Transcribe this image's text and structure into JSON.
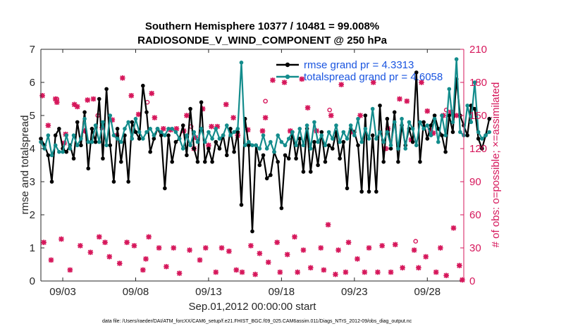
{
  "chart_data": {
    "type": "line",
    "title_line1": "Southern Hemisphere 10377 / 10481 = 99.008%",
    "title_line2": "RADIOSONDE_V_WIND_COMPONENT @ 250 hPa",
    "xlabel": "Sep.01,2012 00:00:00 start",
    "ylabel_left": "rmse and totalspread",
    "ylabel_right": "# of obs: o=possible; ×=assimilated",
    "footnote": "data file: /Users/raeder/DAI/ATM_forcXX/CAM6_setup/f.e21.FHIST_BGC.f09_025.CAM6assim.011/Diags_NTrS_2012-09/obs_diag_output.nc",
    "xlim": [
      1.5,
      30.5
    ],
    "ylim_left": [
      0,
      7
    ],
    "ylim_right": [
      0,
      210
    ],
    "x_ticks": [
      3,
      8,
      13,
      18,
      23,
      28
    ],
    "x_tick_labels": [
      "09/03",
      "09/08",
      "09/13",
      "09/18",
      "09/23",
      "09/28"
    ],
    "y_left_ticks": [
      "0",
      "1",
      "2",
      "3",
      "4",
      "5",
      "6",
      "7"
    ],
    "y_right_ticks": [
      "0",
      "30",
      "60",
      "90",
      "120",
      "150",
      "180",
      "210"
    ],
    "colors": {
      "rmse": "#000000",
      "spread": "#138c8c",
      "obs": "#d6175b",
      "legend_text": "#1a55e0"
    },
    "x_start": 1.5,
    "x_step": 0.25,
    "series": [
      {
        "name": "rmse grand pr = 4.3313",
        "values": [
          4.3,
          4.1,
          3.8,
          3.0,
          4.4,
          4.6,
          4.0,
          3.9,
          4.1,
          3.7,
          4.8,
          4.1,
          5.1,
          3.4,
          4.6,
          4.2,
          5.5,
          3.7,
          5.8,
          4.1,
          3.0,
          4.6,
          3.6,
          4.4,
          3.0,
          4.8,
          4.5,
          4.3,
          5.9,
          5.1,
          3.9,
          4.3,
          4.6,
          4.4,
          2.8,
          4.4,
          3.6,
          4.2,
          4.3,
          4.7,
          3.8,
          5.2,
          4.0,
          3.6,
          5.4,
          3.6,
          4.0,
          3.6,
          4.2,
          4.0,
          4.4,
          3.8,
          4.6,
          3.9,
          4.5,
          2.3,
          4.9,
          4.1,
          1.5,
          4.1,
          3.5,
          3.8,
          3.1,
          3.2,
          3.9,
          3.6,
          2.2,
          3.8,
          3.7,
          4.5,
          3.7,
          4.3,
          3.3,
          4.6,
          3.3,
          4.2,
          3.5,
          4.5,
          3.6,
          4.1,
          4.0,
          4.5,
          3.7,
          4.2,
          2.8,
          4.6,
          4.5,
          4.1,
          2.7,
          5.0,
          2.7,
          4.4,
          2.7,
          5.3,
          3.6,
          4.9,
          4.0,
          5.1,
          3.6,
          4.7,
          4.1,
          4.6,
          4.2,
          6.3,
          3.6,
          4.8,
          4.3,
          4.7,
          5.0,
          4.6,
          4.4,
          3.9,
          5.0,
          4.5,
          6.1,
          5.0,
          4.7,
          4.4,
          5.3,
          5.2,
          4.3,
          4.0,
          4.4,
          4.9
        ]
      },
      {
        "name": "totalspread grand pr = 4.6058",
        "values": [
          4.2,
          4.0,
          4.4,
          3.8,
          4.1,
          3.9,
          3.9,
          4.4,
          4.0,
          4.4,
          4.1,
          4.3,
          4.9,
          4.2,
          4.2,
          4.7,
          4.2,
          4.8,
          4.1,
          5.0,
          4.4,
          4.3,
          4.2,
          4.6,
          4.8,
          4.3,
          4.9,
          4.5,
          4.3,
          4.5,
          4.6,
          4.4,
          4.6,
          4.5,
          4.4,
          4.6,
          4.6,
          4.5,
          4.3,
          4.0,
          4.4,
          4.1,
          4.5,
          4.2,
          4.6,
          4.2,
          4.5,
          4.3,
          4.6,
          4.3,
          4.4,
          4.7,
          4.4,
          4.5,
          4.6,
          6.6,
          4.1,
          4.2,
          4.1,
          4.1,
          4.0,
          4.4,
          4.0,
          4.2,
          3.9,
          4.4,
          4.2,
          4.1,
          4.3,
          4.5,
          4.1,
          4.6,
          4.1,
          4.7,
          4.0,
          4.8,
          4.2,
          4.4,
          4.1,
          4.5,
          4.3,
          4.7,
          4.2,
          4.5,
          4.3,
          4.7,
          4.4,
          4.9,
          4.2,
          4.6,
          4.3,
          5.2,
          4.3,
          4.5,
          4.2,
          4.5,
          4.1,
          4.8,
          4.0,
          4.9,
          4.0,
          4.8,
          4.6,
          4.1,
          4.8,
          4.6,
          4.7,
          4.4,
          4.9,
          4.2,
          5.0,
          4.4,
          5.8,
          4.8,
          6.7,
          4.5,
          4.4,
          5.3,
          4.8,
          6.0,
          4.5,
          4.3,
          4.4,
          4.5
        ]
      }
    ],
    "obs_points": [
      [
        1.6,
        168
      ],
      [
        1.7,
        35
      ],
      [
        2.0,
        141
      ],
      [
        2.2,
        19
      ],
      [
        2.5,
        165
      ],
      [
        2.6,
        162
      ],
      [
        2.9,
        38
      ],
      [
        3.1,
        125
      ],
      [
        3.2,
        133
      ],
      [
        3.5,
        10
      ],
      [
        3.8,
        160
      ],
      [
        4.0,
        158
      ],
      [
        4.2,
        32
      ],
      [
        4.5,
        136
      ],
      [
        4.7,
        164
      ],
      [
        4.9,
        26
      ],
      [
        5.1,
        165
      ],
      [
        5.5,
        40
      ],
      [
        5.7,
        139
      ],
      [
        5.9,
        35
      ],
      [
        6.2,
        22
      ],
      [
        6.4,
        146
      ],
      [
        6.7,
        132
      ],
      [
        6.9,
        16
      ],
      [
        7.1,
        184
      ],
      [
        7.4,
        35
      ],
      [
        7.7,
        168
      ],
      [
        7.9,
        32
      ],
      [
        8.2,
        151
      ],
      [
        8.5,
        10
      ],
      [
        8.7,
        20
      ],
      [
        8.9,
        40
      ],
      [
        9.1,
        170
      ],
      [
        9.3,
        148
      ],
      [
        9.6,
        30
      ],
      [
        9.9,
        138
      ],
      [
        10.1,
        13
      ],
      [
        10.4,
        137
      ],
      [
        10.6,
        30
      ],
      [
        10.8,
        138
      ],
      [
        11.0,
        7
      ],
      [
        11.3,
        136
      ],
      [
        11.5,
        150
      ],
      [
        11.7,
        28
      ],
      [
        12.0,
        120
      ],
      [
        12.1,
        130
      ],
      [
        12.4,
        19
      ],
      [
        12.6,
        156
      ],
      [
        12.8,
        30
      ],
      [
        13.0,
        123
      ],
      [
        13.2,
        140
      ],
      [
        13.5,
        8
      ],
      [
        13.6,
        140
      ],
      [
        13.9,
        30
      ],
      [
        14.2,
        160
      ],
      [
        14.4,
        27
      ],
      [
        14.7,
        148
      ],
      [
        14.9,
        10
      ],
      [
        15.0,
        132
      ],
      [
        15.3,
        8
      ],
      [
        15.7,
        137
      ],
      [
        15.9,
        32
      ],
      [
        16.2,
        6
      ],
      [
        16.5,
        25
      ],
      [
        16.7,
        136
      ],
      [
        16.9,
        148
      ],
      [
        17.1,
        17
      ],
      [
        17.4,
        182
      ],
      [
        17.7,
        35
      ],
      [
        17.9,
        8
      ],
      [
        18.2,
        180
      ],
      [
        18.4,
        24
      ],
      [
        18.6,
        136
      ],
      [
        18.9,
        40
      ],
      [
        19.1,
        8
      ],
      [
        19.4,
        183
      ],
      [
        19.5,
        28
      ],
      [
        19.8,
        157
      ],
      [
        20.0,
        12
      ],
      [
        20.4,
        136
      ],
      [
        20.7,
        30
      ],
      [
        20.9,
        10
      ],
      [
        21.2,
        51
      ],
      [
        21.4,
        150
      ],
      [
        21.7,
        6
      ],
      [
        21.9,
        28
      ],
      [
        22.1,
        178
      ],
      [
        22.4,
        8
      ],
      [
        22.6,
        35
      ],
      [
        22.9,
        135
      ],
      [
        23.2,
        20
      ],
      [
        23.4,
        150
      ],
      [
        23.7,
        8
      ],
      [
        24.0,
        30
      ],
      [
        24.3,
        180
      ],
      [
        24.6,
        8
      ],
      [
        24.9,
        32
      ],
      [
        25.1,
        120
      ],
      [
        25.3,
        138
      ],
      [
        25.5,
        8
      ],
      [
        25.8,
        33
      ],
      [
        26.1,
        165
      ],
      [
        26.3,
        12
      ],
      [
        26.6,
        163
      ],
      [
        26.9,
        128
      ],
      [
        27.1,
        28
      ],
      [
        27.4,
        12
      ],
      [
        27.6,
        180
      ],
      [
        27.9,
        22
      ],
      [
        28.0,
        154
      ],
      [
        28.2,
        137
      ],
      [
        28.4,
        134
      ],
      [
        28.6,
        8
      ],
      [
        28.9,
        30
      ],
      [
        29.1,
        150
      ],
      [
        29.3,
        5
      ],
      [
        29.6,
        153
      ],
      [
        29.8,
        48
      ],
      [
        30.0,
        150
      ],
      [
        30.2,
        14
      ],
      [
        30.4,
        1
      ]
    ],
    "obs_possible_only": [
      [
        2.6,
        165
      ],
      [
        5.4,
        150
      ],
      [
        8.8,
        162
      ],
      [
        11.8,
        140
      ],
      [
        16.9,
        163
      ],
      [
        21.3,
        155
      ],
      [
        25.2,
        120
      ],
      [
        27.2,
        36
      ],
      [
        29.3,
        155
      ]
    ]
  }
}
